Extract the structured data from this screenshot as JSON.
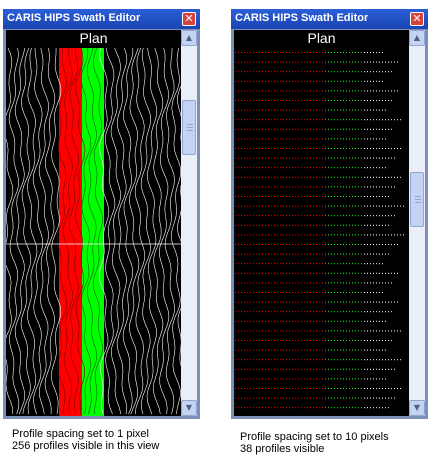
{
  "windows": [
    {
      "title": "CARIS HIPS Swath Editor",
      "header": "Plan",
      "scroll_position": 0.18,
      "caption_lines": [
        "Profile spacing set to 1 pixel",
        "256 profiles visible in this view"
      ]
    },
    {
      "title": "CARIS HIPS Swath Editor",
      "header": "Plan",
      "scroll_position": 0.42,
      "caption_lines": [
        "Profile spacing set to 10 pixels",
        "38 profiles visible"
      ]
    }
  ],
  "colors": {
    "port": "#ff0000",
    "starboard": "#00ff00",
    "background": "#000000",
    "profile_lines": "#ffffff"
  },
  "icons": [
    "close-icon",
    "scroll-up-icon",
    "scroll-down-icon",
    "scroll-grip-icon"
  ]
}
